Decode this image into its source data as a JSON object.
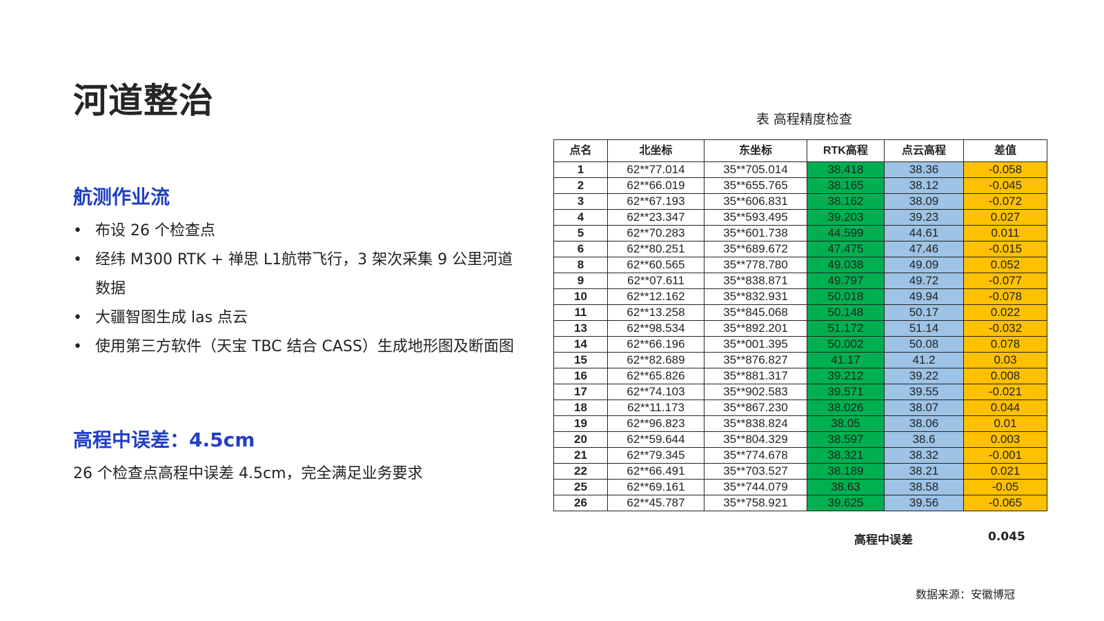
{
  "title": "河道整治",
  "section1": {
    "heading": "航测作业流",
    "bullets": [
      "布设 26 个检查点",
      "经纬 M300 RTK + 禅思 L1航带飞行，3 架次采集 9 公里河道数据",
      "大疆智图生成 las 点云",
      "使用第三方软件（天宝 TBC 结合 CASS）生成地形图及断面图"
    ]
  },
  "section2": {
    "heading": "高程中误差：4.5cm",
    "text": "26 个检查点高程中误差 4.5cm，完全满足业务要求"
  },
  "table": {
    "caption": "表 高程精度检查",
    "colors": {
      "rtk": "#00b050",
      "cloud": "#9dc3e6",
      "diff": "#ffc000"
    },
    "headers": [
      "点名",
      "北坐标",
      "东坐标",
      "RTK高程",
      "点云高程",
      "差值"
    ],
    "rows": [
      [
        "1",
        "62**77.014",
        "35**705.014",
        "38.418",
        "38.36",
        "-0.058"
      ],
      [
        "2",
        "62**66.019",
        "35**655.765",
        "38.165",
        "38.12",
        "-0.045"
      ],
      [
        "3",
        "62**67.193",
        "35**606.831",
        "38.162",
        "38.09",
        "-0.072"
      ],
      [
        "4",
        "62**23.347",
        "35**593.495",
        "39.203",
        "39.23",
        "0.027"
      ],
      [
        "5",
        "62**70.283",
        "35**601.738",
        "44.599",
        "44.61",
        "0.011"
      ],
      [
        "6",
        "62**80.251",
        "35**689.672",
        "47.475",
        "47.46",
        "-0.015"
      ],
      [
        "8",
        "62**60.565",
        "35**778.780",
        "49.038",
        "49.09",
        "0.052"
      ],
      [
        "9",
        "62**07.611",
        "35**838.871",
        "49.797",
        "49.72",
        "-0.077"
      ],
      [
        "10",
        "62**12.162",
        "35**832.931",
        "50.018",
        "49.94",
        "-0.078"
      ],
      [
        "11",
        "62**13.258",
        "35**845.068",
        "50.148",
        "50.17",
        "0.022"
      ],
      [
        "13",
        "62**98.534",
        "35**892.201",
        "51.172",
        "51.14",
        "-0.032"
      ],
      [
        "14",
        "62**66.196",
        "35**001.395",
        "50.002",
        "50.08",
        "0.078"
      ],
      [
        "15",
        "62**82.689",
        "35**876.827",
        "41.17",
        "41.2",
        "0.03"
      ],
      [
        "16",
        "62**65.826",
        "35**881.317",
        "39.212",
        "39.22",
        "0.008"
      ],
      [
        "17",
        "62**74.103",
        "35**902.583",
        "39.571",
        "39.55",
        "-0.021"
      ],
      [
        "18",
        "62**11.173",
        "35**867.230",
        "38.026",
        "38.07",
        "0.044"
      ],
      [
        "19",
        "62**96.823",
        "35**838.824",
        "38.05",
        "38.06",
        "0.01"
      ],
      [
        "20",
        "62**59.644",
        "35**804.329",
        "38.597",
        "38.6",
        "0.003"
      ],
      [
        "21",
        "62**79.345",
        "35**774.678",
        "38.321",
        "38.32",
        "-0.001"
      ],
      [
        "22",
        "62**66.491",
        "35**703.527",
        "38.189",
        "38.21",
        "0.021"
      ],
      [
        "25",
        "62**69.161",
        "35**744.079",
        "38.63",
        "38.58",
        "-0.05"
      ],
      [
        "26",
        "62**45.787",
        "35**758.921",
        "39.625",
        "39.56",
        "-0.065"
      ]
    ],
    "summary_label": "高程中误差",
    "summary_value": "0.045"
  },
  "source": "数据来源：安徽博冠"
}
